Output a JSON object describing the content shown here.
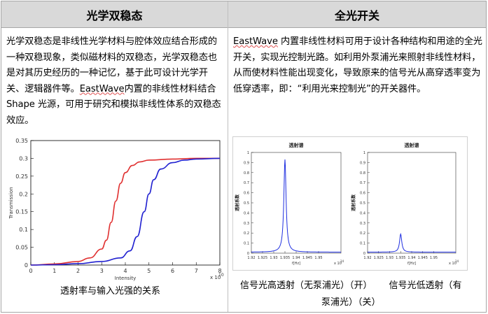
{
  "table": {
    "left_header": "光学双稳态",
    "right_header": "全光开关",
    "left_text": [
      "光学双稳态是非线性光学材料与腔体效应结合形成的一种双稳现象，类似磁材料的双稳态，光学双稳态也是对其历史经历的一种记忆，基于此可设计光学开关、逻辑器件等。",
      "EastWave",
      "内置的非线性材料结合 Shape 光源，可用于研究和模拟非线性体系的双稳态效应。"
    ],
    "right_text": [
      "EastWave",
      " 内置非线性材料可用于设计各种结构和用途的全光开关，实现光控制光路。如利用外泵浦光来照射非线性材料，从而使材料性能出现变化，导致原来的信号光从高穿透率变为低穿透率，即：“利用光来控制光”的开关器件。"
    ],
    "left_caption": "透射率与输入光强的关系",
    "right_caption_1": "信号光高透射（无泵浦光）（开）",
    "right_caption_2": "信号光低透射（有",
    "right_caption_3": "泵浦光）（关）"
  },
  "chart_data": [
    {
      "type": "line",
      "title": "",
      "xlabel": "Intensity",
      "ylabel": "Transmission",
      "x_exponent_label": "x 10",
      "x_exponent": "10",
      "xlim": [
        0,
        8
      ],
      "ylim": [
        0,
        0.35
      ],
      "xticks": [
        "0",
        "1",
        "2",
        "3",
        "4",
        "5",
        "6",
        "7",
        "8"
      ],
      "yticks": [
        "0",
        "0.05",
        "0.1",
        "0.15",
        "0.2",
        "0.25",
        "0.3",
        "0.35"
      ],
      "series": [
        {
          "color": "#e03030",
          "x": [
            0,
            1,
            2,
            2.5,
            3,
            3.2,
            3.4,
            3.6,
            3.8,
            4.0,
            4.3,
            4.6,
            5,
            6,
            7,
            8
          ],
          "y": [
            0,
            0.003,
            0.01,
            0.02,
            0.045,
            0.07,
            0.12,
            0.18,
            0.23,
            0.26,
            0.28,
            0.29,
            0.295,
            0.298,
            0.3,
            0.3
          ]
        },
        {
          "color": "#2020d0",
          "x": [
            0,
            1,
            2,
            3,
            3.8,
            4.2,
            4.5,
            4.8,
            5.0,
            5.2,
            5.5,
            6,
            6.5,
            7,
            8
          ],
          "y": [
            0,
            0.001,
            0.004,
            0.01,
            0.02,
            0.04,
            0.08,
            0.15,
            0.2,
            0.24,
            0.27,
            0.288,
            0.295,
            0.298,
            0.3
          ]
        }
      ]
    },
    {
      "type": "line",
      "title": "透射谱",
      "xlabel": "f[Hz]",
      "ylabel": "透射系数",
      "x_exponent_label": "x 10",
      "x_exponent": "14",
      "xlim": [
        1.92,
        1.96
      ],
      "ylim": [
        0,
        1
      ],
      "xticks": [
        "1.92",
        "1.925",
        "1.93",
        "1.935",
        "1.94",
        "1.945",
        "1.95"
      ],
      "yticks": [
        "0",
        "0.1",
        "0.2",
        "0.3",
        "0.4",
        "0.5",
        "0.6",
        "0.7",
        "0.8",
        "0.9",
        "1"
      ],
      "peak": {
        "x": 1.935,
        "y": 0.92
      }
    },
    {
      "type": "line",
      "title": "透射谱",
      "xlabel": "f[Hz]",
      "ylabel": "透射系数",
      "x_exponent_label": "x 10",
      "x_exponent": "14",
      "xlim": [
        1.92,
        1.96
      ],
      "ylim": [
        0,
        1
      ],
      "xticks": [
        "1.92",
        "1.925",
        "1.93",
        "1.935",
        "1.94",
        "1.945",
        "1.95"
      ],
      "yticks": [
        "0",
        "0.1",
        "0.2",
        "0.3",
        "0.4",
        "0.5",
        "0.6",
        "0.7",
        "0.8",
        "0.9",
        "1"
      ],
      "peak": {
        "x": 1.935,
        "y": 0.18
      }
    }
  ]
}
